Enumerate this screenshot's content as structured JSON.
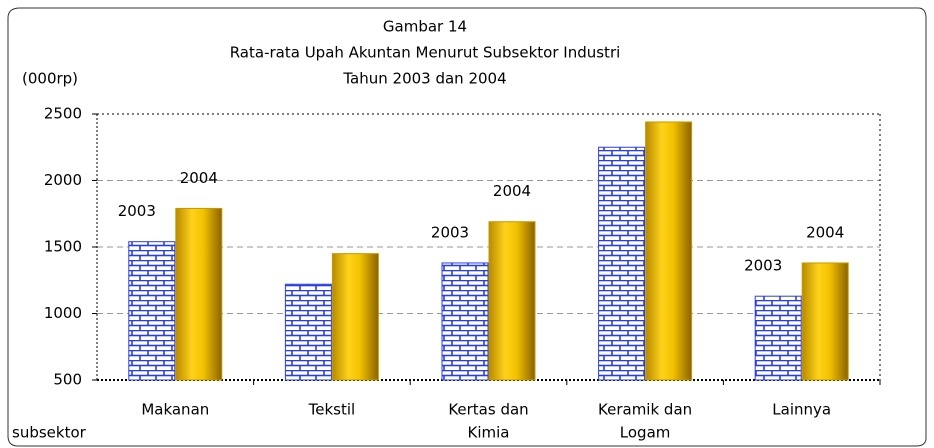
{
  "chart_data": {
    "type": "bar",
    "title_lines": [
      "Gambar 14",
      "Rata-rata Upah Akuntan Menurut Subsektor Industri",
      "Tahun 2003 dan 2004"
    ],
    "y_label": "(000rp)",
    "x_label": "subsektor",
    "categories": [
      [
        "Makanan"
      ],
      [
        "Tekstil"
      ],
      [
        "Kertas dan",
        "Kimia"
      ],
      [
        "Keramik dan",
        "Logam"
      ],
      [
        "Lainnya"
      ]
    ],
    "series": [
      {
        "name": "2003",
        "color": "#2a3fe0",
        "pattern": "brick",
        "values": [
          1540,
          1220,
          1380,
          2250,
          1130
        ]
      },
      {
        "name": "2004",
        "color": "#f2c200",
        "pattern": "gradient",
        "values": [
          1790,
          1450,
          1690,
          2440,
          1380
        ]
      }
    ],
    "series_label_at": [
      0,
      2,
      4
    ],
    "ylim": [
      500,
      2500
    ],
    "yticks": [
      500,
      1000,
      1500,
      2000,
      2500
    ],
    "grid": true
  }
}
